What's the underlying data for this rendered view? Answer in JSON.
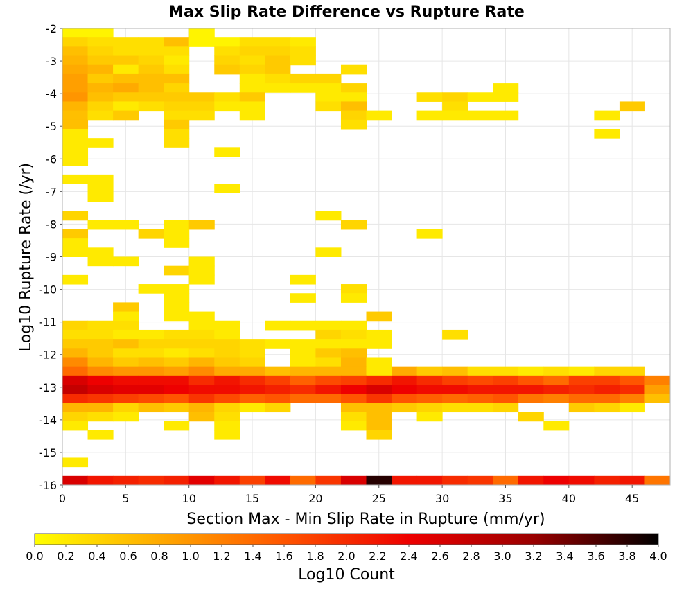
{
  "chart_data": {
    "type": "heatmap",
    "title": "Max Slip Rate Difference vs Rupture Rate",
    "xlabel": "Section Max - Min Slip Rate in Rupture (mm/yr)",
    "ylabel": "Log10 Rupture Rate (/yr)",
    "xlim": [
      0,
      48
    ],
    "ylim": [
      -16,
      -2
    ],
    "x_bin_width": 2,
    "y_bin_height": 0.28,
    "x_ticks": [
      "0",
      "5",
      "10",
      "15",
      "20",
      "25",
      "30",
      "35",
      "40",
      "45"
    ],
    "x_tick_values": [
      0,
      5,
      10,
      15,
      20,
      25,
      30,
      35,
      40,
      45
    ],
    "y_ticks": [
      "-2",
      "-3",
      "-4",
      "-5",
      "-6",
      "-7",
      "-8",
      "-9",
      "-10",
      "-11",
      "-12",
      "-13",
      "-14",
      "-15",
      "-16"
    ],
    "y_tick_values": [
      -2,
      -3,
      -4,
      -5,
      -6,
      -7,
      -8,
      -9,
      -10,
      -11,
      -12,
      -13,
      -14,
      -15,
      -16
    ],
    "grid": true,
    "colorbar": {
      "label": "Log10 Count",
      "range": [
        0,
        4
      ],
      "ticks": [
        "0.0",
        "0.2",
        "0.4",
        "0.6",
        "0.8",
        "1.0",
        "1.2",
        "1.4",
        "1.6",
        "1.8",
        "2.0",
        "2.2",
        "2.4",
        "2.6",
        "2.8",
        "3.0",
        "3.2",
        "3.4",
        "3.6",
        "3.8",
        "4.0"
      ],
      "colormap": [
        "#ffff00",
        "#ffaa00",
        "#ff5500",
        "#ee0000",
        "#990000",
        "#000000"
      ]
    },
    "rows": [
      {
        "y": -2.14,
        "values": {
          "0": 0.1,
          "1": 0.1,
          "5": 0.1
        }
      },
      {
        "y": -2.42,
        "values": {
          "0": 0.4,
          "1": 0.3,
          "2": 0.3,
          "3": 0.3,
          "4": 0.6,
          "5": 0.1,
          "6": 0.1,
          "7": 0.3,
          "8": 0.3,
          "9": 0.2
        }
      },
      {
        "y": -2.7,
        "values": {
          "0": 0.6,
          "1": 0.4,
          "2": 0.3,
          "3": 0.3,
          "4": 0.3,
          "6": 0.3,
          "7": 0.4,
          "8": 0.4,
          "9": 0.3
        }
      },
      {
        "y": -2.98,
        "values": {
          "0": 0.7,
          "1": 0.5,
          "2": 0.5,
          "3": 0.4,
          "4": 0.2,
          "6": 0.4,
          "7": 0.3,
          "8": 0.5,
          "9": 0.3
        }
      },
      {
        "y": -3.26,
        "values": {
          "0": 0.8,
          "1": 0.7,
          "2": 0.2,
          "3": 0.5,
          "4": 0.3,
          "6": 0.5,
          "7": 0.4,
          "8": 0.5,
          "11": 0.3
        }
      },
      {
        "y": -3.54,
        "values": {
          "0": 0.9,
          "1": 0.5,
          "2": 0.6,
          "3": 0.6,
          "4": 0.6,
          "7": 0.2,
          "8": 0.3,
          "9": 0.4,
          "10": 0.4
        }
      },
      {
        "y": -3.82,
        "values": {
          "0": 0.9,
          "1": 0.7,
          "2": 0.8,
          "3": 0.6,
          "4": 0.4,
          "7": 0.2,
          "8": 0.2,
          "9": 0.2,
          "10": 0.2,
          "11": 0.4,
          "17": 0.2
        }
      },
      {
        "y": -4.1,
        "values": {
          "0": 1.0,
          "1": 0.6,
          "2": 0.5,
          "3": 0.5,
          "4": 0.5,
          "5": 0.5,
          "6": 0.3,
          "7": 0.5,
          "10": 0.2,
          "11": 0.2,
          "14": 0.3,
          "15": 0.4,
          "16": 0.2,
          "17": 0.2
        }
      },
      {
        "y": -4.38,
        "values": {
          "0": 0.7,
          "1": 0.4,
          "2": 0.2,
          "3": 0.3,
          "4": 0.4,
          "5": 0.4,
          "6": 0.2,
          "7": 0.2,
          "10": 0.3,
          "11": 0.6,
          "15": 0.3,
          "22": 0.5
        }
      },
      {
        "y": -4.66,
        "values": {
          "0": 0.6,
          "1": 0.3,
          "2": 0.5,
          "4": 0.3,
          "5": 0.3,
          "7": 0.2,
          "11": 0.4,
          "12": 0.2,
          "14": 0.2,
          "15": 0.2,
          "16": 0.2,
          "17": 0.2,
          "21": 0.2
        }
      },
      {
        "y": -4.94,
        "values": {
          "0": 0.6,
          "4": 0.5,
          "11": 0.3
        }
      },
      {
        "y": -5.22,
        "values": {
          "0": 0.2,
          "4": 0.3,
          "21": 0.2
        }
      },
      {
        "y": -5.5,
        "values": {
          "0": 0.2,
          "1": 0.2,
          "4": 0.3
        }
      },
      {
        "y": -5.78,
        "values": {
          "0": 0.2,
          "6": 0.2
        }
      },
      {
        "y": -6.06,
        "values": {
          "0": 0.2
        }
      },
      {
        "y": -6.62,
        "values": {
          "0": 0.2,
          "1": 0.2
        }
      },
      {
        "y": -6.9,
        "values": {
          "1": 0.2,
          "6": 0.2
        }
      },
      {
        "y": -7.18,
        "values": {
          "1": 0.2
        }
      },
      {
        "y": -7.74,
        "values": {
          "0": 0.4,
          "10": 0.2
        }
      },
      {
        "y": -8.02,
        "values": {
          "1": 0.2,
          "2": 0.2,
          "4": 0.2,
          "5": 0.5,
          "11": 0.4
        }
      },
      {
        "y": -8.3,
        "values": {
          "0": 0.5,
          "3": 0.4,
          "4": 0.2,
          "14": 0.2
        }
      },
      {
        "y": -8.58,
        "values": {
          "0": 0.2,
          "4": 0.2
        }
      },
      {
        "y": -8.86,
        "values": {
          "0": 0.2,
          "1": 0.2,
          "10": 0.2
        }
      },
      {
        "y": -9.14,
        "values": {
          "1": 0.2,
          "2": 0.2,
          "5": 0.2
        }
      },
      {
        "y": -9.42,
        "values": {
          "4": 0.4,
          "5": 0.2
        }
      },
      {
        "y": -9.7,
        "values": {
          "0": 0.2,
          "5": 0.2,
          "9": 0.2
        }
      },
      {
        "y": -9.98,
        "values": {
          "3": 0.2,
          "4": 0.2,
          "11": 0.3
        }
      },
      {
        "y": -10.26,
        "values": {
          "4": 0.2,
          "9": 0.2,
          "11": 0.2
        }
      },
      {
        "y": -10.54,
        "values": {
          "2": 0.5,
          "4": 0.2
        }
      },
      {
        "y": -10.82,
        "values": {
          "2": 0.2,
          "4": 0.2,
          "5": 0.2,
          "12": 0.5
        }
      },
      {
        "y": -11.1,
        "values": {
          "0": 0.4,
          "1": 0.3,
          "2": 0.3,
          "5": 0.2,
          "6": 0.2,
          "8": 0.2,
          "9": 0.2,
          "10": 0.2,
          "11": 0.2
        }
      },
      {
        "y": -11.38,
        "values": {
          "0": 0.3,
          "1": 0.3,
          "2": 0.2,
          "3": 0.2,
          "4": 0.3,
          "5": 0.3,
          "6": 0.2,
          "10": 0.4,
          "11": 0.3,
          "12": 0.2,
          "15": 0.3
        }
      },
      {
        "y": -11.66,
        "values": {
          "0": 0.5,
          "1": 0.5,
          "2": 0.6,
          "3": 0.4,
          "4": 0.4,
          "5": 0.4,
          "6": 0.4,
          "7": 0.3,
          "8": 0.2,
          "9": 0.2,
          "10": 0.2,
          "11": 0.2,
          "12": 0.2
        }
      },
      {
        "y": -11.94,
        "values": {
          "0": 0.7,
          "1": 0.5,
          "2": 0.3,
          "3": 0.3,
          "4": 0.2,
          "5": 0.3,
          "6": 0.4,
          "7": 0.3,
          "9": 0.2,
          "10": 0.5,
          "11": 0.6
        }
      },
      {
        "y": -12.22,
        "values": {
          "0": 1.1,
          "1": 0.7,
          "2": 0.5,
          "3": 0.6,
          "4": 0.5,
          "5": 0.7,
          "6": 0.5,
          "7": 0.4,
          "9": 0.2,
          "10": 0.3,
          "11": 0.7,
          "12": 0.2
        }
      },
      {
        "y": -12.5,
        "values": {
          "0": 1.4,
          "1": 1.1,
          "2": 1.0,
          "3": 1.0,
          "4": 0.9,
          "5": 1.1,
          "6": 0.8,
          "7": 0.8,
          "8": 0.6,
          "9": 0.7,
          "10": 0.7,
          "11": 0.7,
          "12": 0.2,
          "13": 0.8,
          "14": 0.5,
          "15": 0.6,
          "16": 0.3,
          "17": 0.3,
          "18": 0.2,
          "19": 0.3,
          "20": 0.2,
          "21": 0.4,
          "22": 0.4
        }
      },
      {
        "y": -12.78,
        "values": {
          "0": 2.6,
          "1": 2.4,
          "2": 2.3,
          "3": 2.3,
          "4": 2.3,
          "5": 2.0,
          "6": 2.2,
          "7": 2.0,
          "8": 1.8,
          "9": 1.5,
          "10": 1.7,
          "11": 1.8,
          "12": 2.0,
          "13": 2.2,
          "14": 2.0,
          "15": 1.8,
          "16": 1.7,
          "17": 1.8,
          "18": 1.6,
          "19": 1.4,
          "20": 1.8,
          "21": 1.8,
          "22": 1.6,
          "23": 1.2
        }
      },
      {
        "y": -13.06,
        "values": {
          "0": 2.8,
          "1": 2.6,
          "2": 2.5,
          "3": 2.5,
          "4": 2.4,
          "5": 2.3,
          "6": 2.3,
          "7": 2.2,
          "8": 2.1,
          "9": 2.0,
          "10": 2.2,
          "11": 2.4,
          "12": 2.6,
          "13": 2.4,
          "14": 2.3,
          "15": 2.3,
          "16": 2.2,
          "17": 2.2,
          "18": 2.2,
          "19": 2.1,
          "20": 2.0,
          "21": 2.1,
          "22": 2.0,
          "23": 0.9
        }
      },
      {
        "y": -13.34,
        "values": {
          "0": 2.0,
          "1": 1.9,
          "2": 1.8,
          "3": 1.7,
          "4": 1.6,
          "5": 1.9,
          "6": 1.7,
          "7": 1.5,
          "8": 1.6,
          "9": 1.4,
          "10": 1.4,
          "11": 1.6,
          "12": 1.9,
          "13": 1.6,
          "14": 1.5,
          "15": 1.4,
          "16": 1.5,
          "17": 1.6,
          "18": 1.3,
          "19": 1.2,
          "20": 1.4,
          "21": 1.4,
          "22": 1.2,
          "23": 0.6
        }
      },
      {
        "y": -13.62,
        "values": {
          "0": 0.7,
          "1": 0.7,
          "2": 0.4,
          "3": 0.6,
          "4": 0.5,
          "5": 0.7,
          "6": 0.4,
          "7": 0.2,
          "8": 0.4,
          "11": 0.6,
          "12": 0.6,
          "13": 0.5,
          "14": 0.4,
          "15": 0.3,
          "16": 0.3,
          "17": 0.4,
          "20": 0.5,
          "21": 0.4,
          "22": 0.2
        }
      },
      {
        "y": -13.9,
        "values": {
          "0": 0.4,
          "1": 0.3,
          "2": 0.2,
          "5": 0.6,
          "6": 0.3,
          "11": 0.3,
          "12": 0.6,
          "14": 0.2,
          "18": 0.4
        }
      },
      {
        "y": -14.18,
        "values": {
          "0": 0.2,
          "4": 0.2,
          "6": 0.2,
          "11": 0.2,
          "12": 0.6,
          "19": 0.2
        }
      },
      {
        "y": -14.46,
        "values": {
          "1": 0.2,
          "6": 0.2,
          "12": 0.4
        }
      },
      {
        "y": -15.3,
        "values": {
          "0": 0.2
        }
      },
      {
        "y": -15.86,
        "values": {
          "0": 2.6,
          "1": 2.2,
          "2": 2.1,
          "3": 2.0,
          "4": 2.1,
          "5": 2.5,
          "6": 2.2,
          "7": 1.8,
          "8": 2.3,
          "9": 1.4,
          "10": 1.9,
          "11": 2.6,
          "12": 3.8,
          "13": 2.2,
          "14": 2.2,
          "15": 2.0,
          "16": 1.9,
          "17": 1.4,
          "18": 2.2,
          "19": 2.4,
          "20": 2.3,
          "21": 2.1,
          "22": 2.2,
          "23": 1.3
        }
      }
    ]
  }
}
